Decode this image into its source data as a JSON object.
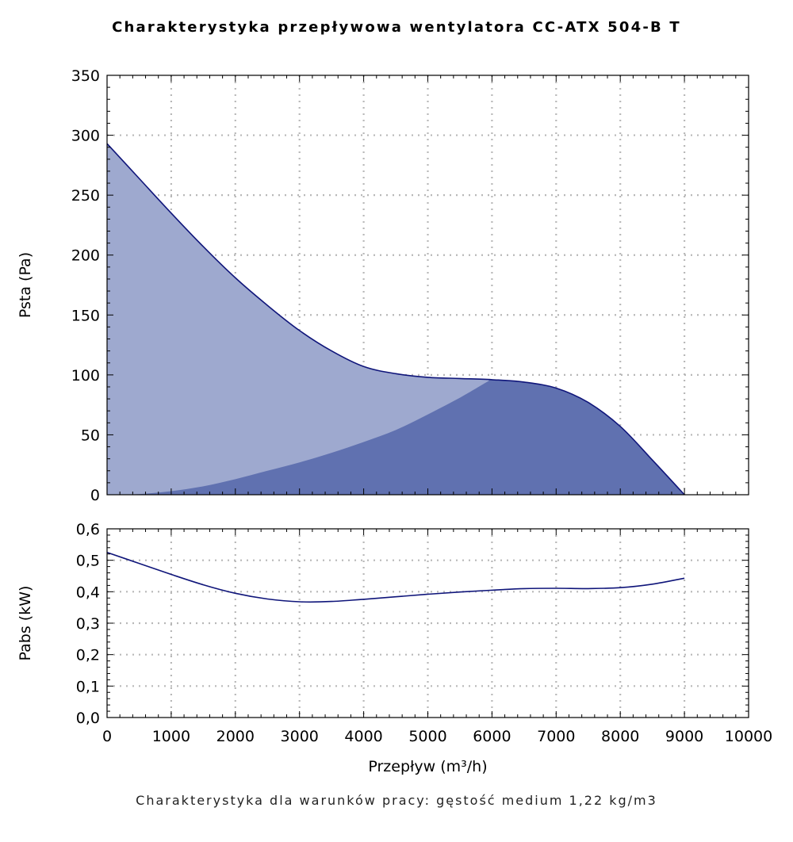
{
  "title": "Charakterystyka przepływowa wentylatora CC-ATX 504-B T",
  "footnote": "Charakterystyka dla warunków pracy: gęstość medium 1,22 kg/m3",
  "colors": {
    "light_fill": "#9ea9cf",
    "dark_fill": "#6071b0",
    "curve": "#0f157a",
    "grid": "#b8b8b8"
  },
  "chart_data": [
    {
      "type": "area",
      "name": "pressure",
      "ylabel": "Psta (Pa)",
      "xlabel": "",
      "xlim": [
        0,
        10000
      ],
      "ylim": [
        0,
        350
      ],
      "x_ticks": [
        0,
        1000,
        2000,
        3000,
        4000,
        5000,
        6000,
        7000,
        8000,
        9000,
        10000
      ],
      "y_ticks": [
        0,
        50,
        100,
        150,
        200,
        250,
        300,
        350
      ],
      "y_tick_labels": [
        "0",
        "50",
        "100",
        "150",
        "200",
        "250",
        "300",
        "350"
      ],
      "grid": true,
      "series": [
        {
          "name": "Psta",
          "x": [
            0,
            500,
            1000,
            1500,
            2000,
            2500,
            3000,
            3500,
            4000,
            4500,
            5000,
            5500,
            6000,
            6500,
            7000,
            7500,
            8000,
            8500,
            9000
          ],
          "y": [
            293,
            264,
            235,
            207,
            181,
            158,
            137,
            120,
            107,
            101,
            98,
            97,
            96,
            94,
            89,
            77,
            57,
            29,
            0
          ]
        },
        {
          "name": "system",
          "x": [
            0,
            500,
            1000,
            1500,
            2000,
            2500,
            3000,
            3500,
            4000,
            4500,
            5000,
            5500,
            5950
          ],
          "y": [
            0,
            0.5,
            3,
            7,
            13,
            20,
            27,
            35,
            44,
            54,
            67,
            81,
            95
          ]
        }
      ]
    },
    {
      "type": "line",
      "name": "power",
      "ylabel": "Pabs (kW)",
      "xlabel": "Przepływ (m³/h)",
      "xlim": [
        0,
        10000
      ],
      "ylim": [
        0,
        0.6
      ],
      "x_ticks": [
        0,
        1000,
        2000,
        3000,
        4000,
        5000,
        6000,
        7000,
        8000,
        9000,
        10000
      ],
      "x_tick_labels": [
        "0",
        "1000",
        "2000",
        "3000",
        "4000",
        "5000",
        "6000",
        "7000",
        "8000",
        "9000",
        "10000"
      ],
      "y_ticks": [
        0,
        0.1,
        0.2,
        0.3,
        0.4,
        0.5,
        0.6
      ],
      "y_tick_labels": [
        "0,0",
        "0,1",
        "0,2",
        "0,3",
        "0,4",
        "0,5",
        "0,6"
      ],
      "grid": true,
      "series": [
        {
          "name": "Pabs",
          "x": [
            0,
            500,
            1000,
            1500,
            2000,
            2500,
            3000,
            3500,
            4000,
            4500,
            5000,
            5500,
            6000,
            6500,
            7000,
            7500,
            8000,
            8500,
            9000
          ],
          "y": [
            0.525,
            0.49,
            0.455,
            0.422,
            0.395,
            0.377,
            0.368,
            0.369,
            0.376,
            0.384,
            0.392,
            0.399,
            0.405,
            0.41,
            0.411,
            0.41,
            0.413,
            0.424,
            0.443
          ]
        }
      ]
    }
  ]
}
